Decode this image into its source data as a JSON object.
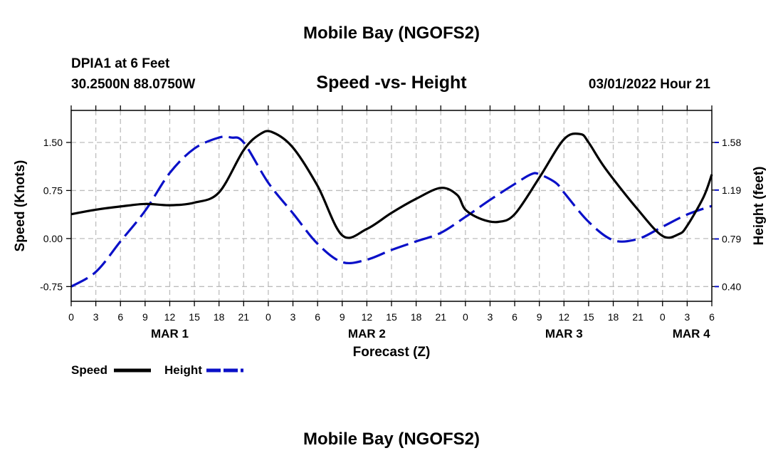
{
  "page": {
    "title": "Mobile Bay (NGOFS2)",
    "footer_title": "Mobile Bay (NGOFS2)",
    "station": "DPIA1 at 6 Feet",
    "coords": "30.2500N  88.0750W",
    "date_hour": "03/01/2022 Hour 21"
  },
  "colors": {
    "speed": "#000000",
    "height": "#0a10c8",
    "grid": "#bdbdbd",
    "axis": "#000000"
  },
  "chart_data": {
    "type": "line",
    "title": "Speed -vs- Height",
    "xlabel": "Forecast (Z)",
    "ylabel_left": "Speed (Knots)",
    "ylabel_right": "Height (feet)",
    "x_range_hours": [
      0,
      78
    ],
    "y_left_range": [
      -0.98,
      2.0
    ],
    "y_left_ticks": [
      -0.75,
      0.0,
      0.75,
      1.5
    ],
    "y_left_tick_labels": [
      "-0.75",
      "0.00",
      "0.75",
      "1.50"
    ],
    "y_right_ticks": [
      0.4,
      0.79,
      1.19,
      1.58
    ],
    "y_right_tick_labels": [
      "0.40",
      "0.79",
      "1.19",
      "1.58"
    ],
    "x_tick_hours": [
      0,
      3,
      6,
      9,
      12,
      15,
      18,
      21,
      24,
      27,
      30,
      33,
      36,
      39,
      42,
      45,
      48,
      51,
      54,
      57,
      60,
      63,
      66,
      69,
      72,
      75,
      78
    ],
    "x_tick_labels": [
      "0",
      "3",
      "6",
      "9",
      "12",
      "15",
      "18",
      "21",
      "0",
      "3",
      "6",
      "9",
      "12",
      "15",
      "18",
      "21",
      "0",
      "3",
      "6",
      "9",
      "12",
      "15",
      "18",
      "21",
      "0",
      "3",
      "6"
    ],
    "day_labels": [
      {
        "label": "MAR 1",
        "hour": 12
      },
      {
        "label": "MAR 2",
        "hour": 36
      },
      {
        "label": "MAR 3",
        "hour": 60
      },
      {
        "label": "MAR 4",
        "hour": 75.5
      }
    ],
    "grid": true,
    "legend_position": "bottom-left",
    "series": [
      {
        "name": "Speed",
        "axis": "left",
        "style": "solid",
        "hours": [
          0,
          3,
          6,
          9,
          12,
          15,
          18,
          21,
          23,
          24.5,
          27,
          30,
          33,
          36,
          39,
          42,
          45,
          47,
          48,
          50,
          52,
          54,
          57,
          60,
          62,
          63,
          65,
          69,
          72,
          74,
          75,
          77,
          78
        ],
        "values": [
          0.38,
          0.45,
          0.5,
          0.54,
          0.52,
          0.56,
          0.72,
          1.38,
          1.63,
          1.66,
          1.42,
          0.82,
          0.05,
          0.15,
          0.4,
          0.62,
          0.79,
          0.68,
          0.45,
          0.3,
          0.26,
          0.38,
          0.95,
          1.55,
          1.63,
          1.5,
          1.1,
          0.45,
          0.04,
          0.07,
          0.2,
          0.65,
          1.0
        ]
      },
      {
        "name": "Height",
        "axis": "right",
        "style": "dashed",
        "hours": [
          0,
          3,
          6,
          9,
          12,
          15,
          18,
          19.5,
          21,
          24,
          27,
          30,
          33,
          36,
          39,
          42,
          45,
          48,
          51,
          54,
          56,
          57,
          59,
          60,
          63,
          66,
          69,
          72,
          75,
          78
        ],
        "values": [
          0.4,
          0.52,
          0.77,
          1.02,
          1.33,
          1.53,
          1.62,
          1.62,
          1.58,
          1.25,
          1.0,
          0.75,
          0.6,
          0.62,
          0.7,
          0.77,
          0.84,
          0.97,
          1.11,
          1.24,
          1.32,
          1.32,
          1.25,
          1.17,
          0.93,
          0.78,
          0.79,
          0.89,
          0.99,
          1.06
        ]
      }
    ]
  }
}
